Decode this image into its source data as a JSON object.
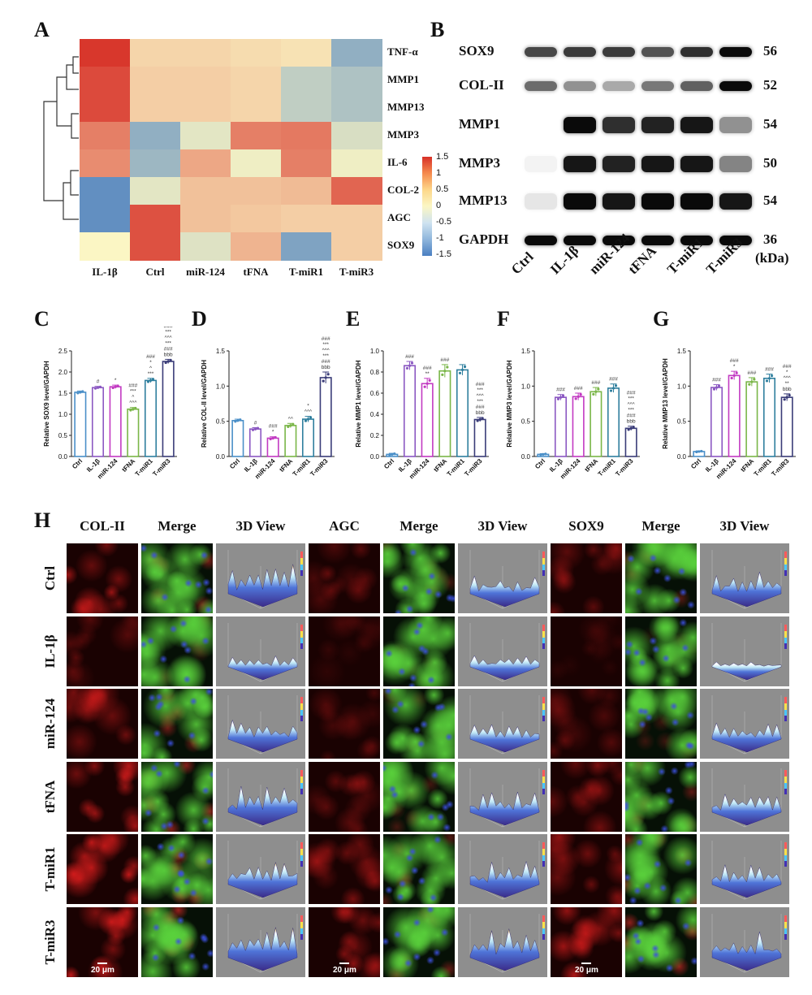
{
  "panels": {
    "A": "A",
    "B": "B",
    "C": "C",
    "D": "D",
    "E": "E",
    "F": "F",
    "G": "G",
    "H": "H"
  },
  "heatmap": {
    "rows": [
      "TNF-α",
      "MMP1",
      "MMP13",
      "MMP3",
      "IL-6",
      "COL-2",
      "AGC",
      "SOX9"
    ],
    "cols": [
      "IL-1β",
      "Ctrl",
      "miR-124",
      "tFNA",
      "T-miR1",
      "T-miR3"
    ],
    "values": [
      [
        1.45,
        0.25,
        0.25,
        0.2,
        0.15,
        -0.9
      ],
      [
        1.3,
        0.3,
        0.3,
        0.25,
        -0.5,
        -0.65
      ],
      [
        1.3,
        0.3,
        0.3,
        0.25,
        -0.5,
        -0.65
      ],
      [
        0.9,
        -0.9,
        -0.2,
        0.9,
        0.95,
        -0.3
      ],
      [
        0.8,
        -0.8,
        0.6,
        -0.1,
        0.9,
        -0.1
      ],
      [
        -1.3,
        -0.2,
        0.4,
        0.4,
        0.45,
        1.1
      ],
      [
        -1.3,
        1.25,
        0.4,
        0.35,
        0.3,
        0.3
      ],
      [
        0.0,
        1.25,
        -0.25,
        0.5,
        -1.05,
        0.3
      ]
    ],
    "colorbar_ticks": [
      "1.5",
      "1",
      "0.5",
      "0",
      "-0.5",
      "-1",
      "-1.5"
    ],
    "colors": {
      "low": "#4a7fc1",
      "mid": "#fbf6c4",
      "high": "#d73027"
    }
  },
  "western_blot": {
    "proteins": [
      {
        "name": "SOX9",
        "kda": "56"
      },
      {
        "name": "COL-II",
        "kda": "52"
      },
      {
        "name": "MMP1",
        "kda": "54"
      },
      {
        "name": "MMP3",
        "kda": "50"
      },
      {
        "name": "MMP13",
        "kda": "54"
      },
      {
        "name": "GAPDH",
        "kda": "36"
      }
    ],
    "lanes": [
      "Ctrl",
      "IL-1β",
      "miR-124",
      "tFNA",
      "T-miR1",
      "T-miR3"
    ],
    "kda_unit": "(kDa)",
    "band_intensity": [
      [
        0.75,
        0.8,
        0.8,
        0.7,
        0.85,
        1.0
      ],
      [
        0.6,
        0.45,
        0.35,
        0.55,
        0.65,
        1.0
      ],
      [
        0.0,
        1.0,
        0.85,
        0.9,
        0.95,
        0.45
      ],
      [
        0.05,
        0.95,
        0.9,
        0.95,
        0.95,
        0.5
      ],
      [
        0.1,
        1.0,
        0.95,
        1.0,
        1.0,
        0.95
      ],
      [
        1.0,
        1.0,
        1.0,
        1.0,
        1.0,
        1.0
      ]
    ]
  },
  "chart_data": [
    {
      "type": "bar",
      "panel": "C",
      "ylabel": "Relative SOX9 level/GAPDH",
      "categories": [
        "Ctrl",
        "IL-1β",
        "miR-124",
        "tFNA",
        "T-miR1",
        "T-miR3"
      ],
      "values": [
        1.52,
        1.63,
        1.65,
        1.12,
        1.8,
        2.25
      ],
      "errors": [
        0.03,
        0.03,
        0.04,
        0.04,
        0.05,
        0.05
      ],
      "ylim": [
        0,
        2.5
      ],
      "yticks": [
        "0.0",
        "0.5",
        "1.0",
        "1.5",
        "2.0",
        "2.5"
      ],
      "annotations": [
        [],
        [
          "#"
        ],
        [
          "*"
        ],
        [
          "###",
          "***",
          "^",
          "^^^"
        ],
        [
          "###",
          "*",
          "^",
          "***"
        ],
        [
          "###",
          "***",
          "^^^",
          "***",
          "###",
          "bbb"
        ]
      ]
    },
    {
      "type": "bar",
      "panel": "D",
      "ylabel": "Relative COL-II level/GAPDH",
      "categories": [
        "Ctrl",
        "IL-1β",
        "miR-124",
        "tFNA",
        "T-miR1",
        "T-miR3"
      ],
      "values": [
        0.51,
        0.39,
        0.26,
        0.44,
        0.53,
        1.12
      ],
      "errors": [
        0.02,
        0.02,
        0.02,
        0.03,
        0.04,
        0.08
      ],
      "ylim": [
        0,
        1.5
      ],
      "yticks": [
        "0.0",
        "0.5",
        "1.0",
        "1.5"
      ],
      "annotations": [
        [],
        [
          "#"
        ],
        [
          "###",
          "*"
        ],
        [
          "^^"
        ],
        [
          "*",
          "^^^"
        ],
        [
          "###",
          "***",
          "^^^",
          "***",
          "###",
          "bbb"
        ]
      ]
    },
    {
      "type": "bar",
      "panel": "E",
      "ylabel": "Relative MMP1 level/GAPDH",
      "categories": [
        "Ctrl",
        "IL-1β",
        "miR-124",
        "tFNA",
        "T-miR1",
        "T-miR3"
      ],
      "values": [
        0.02,
        0.86,
        0.69,
        0.81,
        0.82,
        0.35
      ],
      "errors": [
        0.01,
        0.04,
        0.05,
        0.06,
        0.05,
        0.02
      ],
      "ylim": [
        0,
        1.0
      ],
      "yticks": [
        "0.0",
        "0.2",
        "0.4",
        "0.6",
        "0.8",
        "1.0"
      ],
      "annotations": [
        [],
        [
          "###"
        ],
        [
          "###",
          "**"
        ],
        [
          "###"
        ],
        [],
        [
          "###",
          "***",
          "^^^",
          "***",
          "###",
          "bbb"
        ]
      ]
    },
    {
      "type": "bar",
      "panel": "F",
      "ylabel": "Relative MMP3 level/GAPDH",
      "categories": [
        "Ctrl",
        "IL-1β",
        "miR-124",
        "tFNA",
        "T-miR1",
        "T-miR3"
      ],
      "values": [
        0.03,
        0.84,
        0.85,
        0.92,
        0.97,
        0.4
      ],
      "errors": [
        0.01,
        0.04,
        0.05,
        0.06,
        0.06,
        0.03
      ],
      "ylim": [
        0,
        1.5
      ],
      "yticks": [
        "0.0",
        "0.5",
        "1.0",
        "1.5"
      ],
      "annotations": [
        [],
        [
          "###"
        ],
        [
          "###"
        ],
        [
          "###"
        ],
        [
          "###"
        ],
        [
          "###",
          "***",
          "^^^",
          "***",
          "###",
          "bbb"
        ]
      ]
    },
    {
      "type": "bar",
      "panel": "G",
      "ylabel": "Relative MMP13 level/GAPDH",
      "categories": [
        "Ctrl",
        "IL-1β",
        "miR-124",
        "tFNA",
        "T-miR1",
        "T-miR3"
      ],
      "values": [
        0.07,
        0.98,
        1.15,
        1.06,
        1.11,
        0.84
      ],
      "errors": [
        0.01,
        0.04,
        0.06,
        0.06,
        0.06,
        0.05
      ],
      "ylim": [
        0,
        1.5
      ],
      "yticks": [
        "0.0",
        "0.5",
        "1.0",
        "1.5"
      ],
      "annotations": [
        [],
        [
          "###"
        ],
        [
          "###",
          "*"
        ],
        [
          "###"
        ],
        [
          "###"
        ],
        [
          "###",
          "*",
          "^^^",
          "**",
          "bbb"
        ]
      ]
    }
  ],
  "bar_colors": [
    "#4a8fc8",
    "#8b58c2",
    "#c23ac2",
    "#7ab648",
    "#2f7f9e",
    "#3a3c78"
  ],
  "imaging": {
    "headers": [
      "COL-II",
      "Merge",
      "3D View",
      "AGC",
      "Merge",
      "3D View",
      "SOX9",
      "Merge",
      "3D View"
    ],
    "rows": [
      "Ctrl",
      "IL-1β",
      "miR-124",
      "tFNA",
      "T-miR1",
      "T-miR3"
    ],
    "scale_bar": "20 μm",
    "red_intensity": {
      "COL-II": [
        0.65,
        0.3,
        0.6,
        0.75,
        0.8,
        0.85
      ],
      "AGC": [
        0.35,
        0.15,
        0.25,
        0.35,
        0.45,
        0.55
      ],
      "SOX9": [
        0.45,
        0.12,
        0.3,
        0.5,
        0.6,
        0.8
      ]
    },
    "view3d_height": {
      "COL-II": [
        0.8,
        0.3,
        0.55,
        0.75,
        0.85,
        0.95
      ],
      "AGC": [
        0.6,
        0.35,
        0.4,
        0.55,
        0.65,
        0.8
      ],
      "SOX9": [
        0.6,
        0.15,
        0.45,
        0.6,
        0.55,
        0.7
      ]
    }
  }
}
